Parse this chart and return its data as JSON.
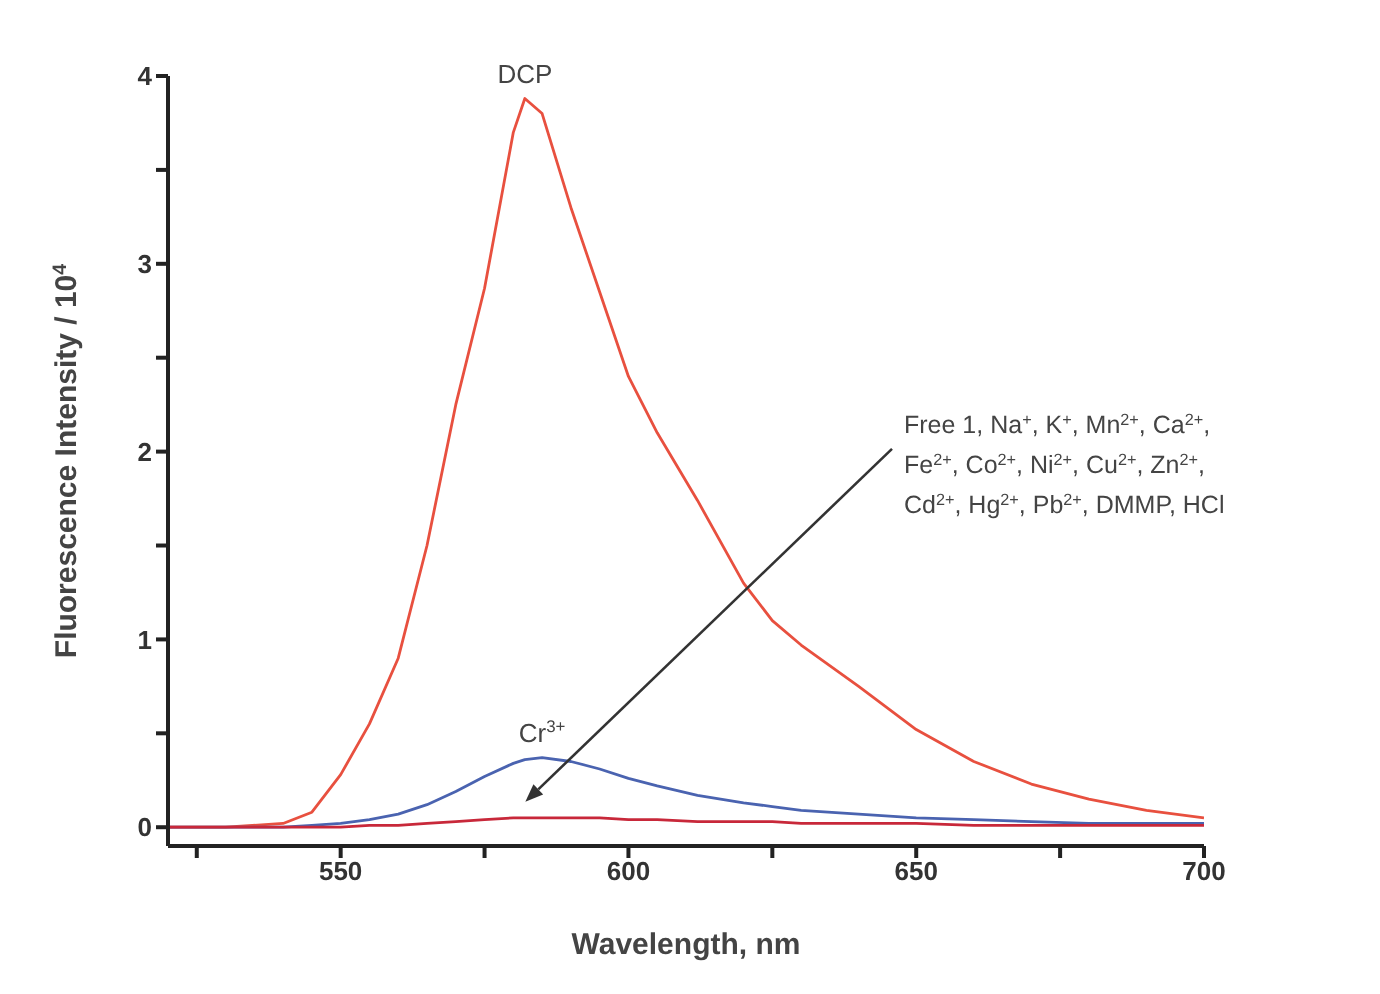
{
  "chart_data": {
    "type": "line",
    "xlabel": "Wavelength, nm",
    "ylabel": "Fluorescence Intensity / 10$^{4}$",
    "x": [
      520,
      530,
      540,
      545,
      550,
      555,
      560,
      565,
      570,
      575,
      580,
      582,
      585,
      590,
      595,
      600,
      605,
      612,
      620,
      625,
      630,
      640,
      650,
      660,
      670,
      680,
      690,
      700
    ],
    "series": [
      {
        "name": "DCP",
        "color": "#e8503f",
        "values": [
          0,
          0,
          0.02,
          0.08,
          0.28,
          0.55,
          0.9,
          1.5,
          2.25,
          2.87,
          3.7,
          3.88,
          3.8,
          3.3,
          2.85,
          2.4,
          2.1,
          1.74,
          1.3,
          1.1,
          0.97,
          0.75,
          0.52,
          0.35,
          0.23,
          0.15,
          0.09,
          0.05
        ]
      },
      {
        "name": "Cr$^{3+}$",
        "color": "#4a63b0",
        "values": [
          0,
          0,
          0,
          0.01,
          0.02,
          0.04,
          0.07,
          0.12,
          0.19,
          0.27,
          0.34,
          0.36,
          0.37,
          0.35,
          0.31,
          0.26,
          0.22,
          0.17,
          0.13,
          0.11,
          0.09,
          0.07,
          0.05,
          0.04,
          0.03,
          0.02,
          0.02,
          0.02
        ]
      },
      {
        "name": "Free 1, Na$^{+}$, K$^{+}$, Mn$^{2+}$, Ca$^{2+}$, Fe$^{2+}$, Co$^{2+}$, Ni$^{2+}$, Cu$^{2+}$, Zn$^{2+}$, Cd$^{2+}$, Hg$^{2+}$, Pb$^{2+}$, DMMP, HCl",
        "color": "#c8283a",
        "values": [
          0,
          0,
          0,
          0,
          0,
          0.01,
          0.01,
          0.02,
          0.03,
          0.04,
          0.05,
          0.05,
          0.05,
          0.05,
          0.05,
          0.04,
          0.04,
          0.03,
          0.03,
          0.03,
          0.02,
          0.02,
          0.02,
          0.01,
          0.01,
          0.01,
          0.01,
          0.01
        ]
      }
    ],
    "xlim": [
      520,
      700
    ],
    "xticks": [
      {
        "value": 525,
        "label": null
      },
      550,
      {
        "value": 575,
        "label": null
      },
      600,
      {
        "value": 625,
        "label": null
      },
      650,
      {
        "value": 675,
        "label": null
      },
      700
    ],
    "ylim": [
      -0.1,
      4
    ],
    "yticks": [
      0,
      {
        "value": 0.5,
        "label": null
      },
      1,
      {
        "value": 1.5,
        "label": null
      },
      2,
      {
        "value": 2.5,
        "label": null
      },
      3,
      {
        "value": 3.5,
        "label": null
      },
      4
    ],
    "grid": false,
    "legend": false,
    "marker": "none",
    "line_style": "solid"
  }
}
